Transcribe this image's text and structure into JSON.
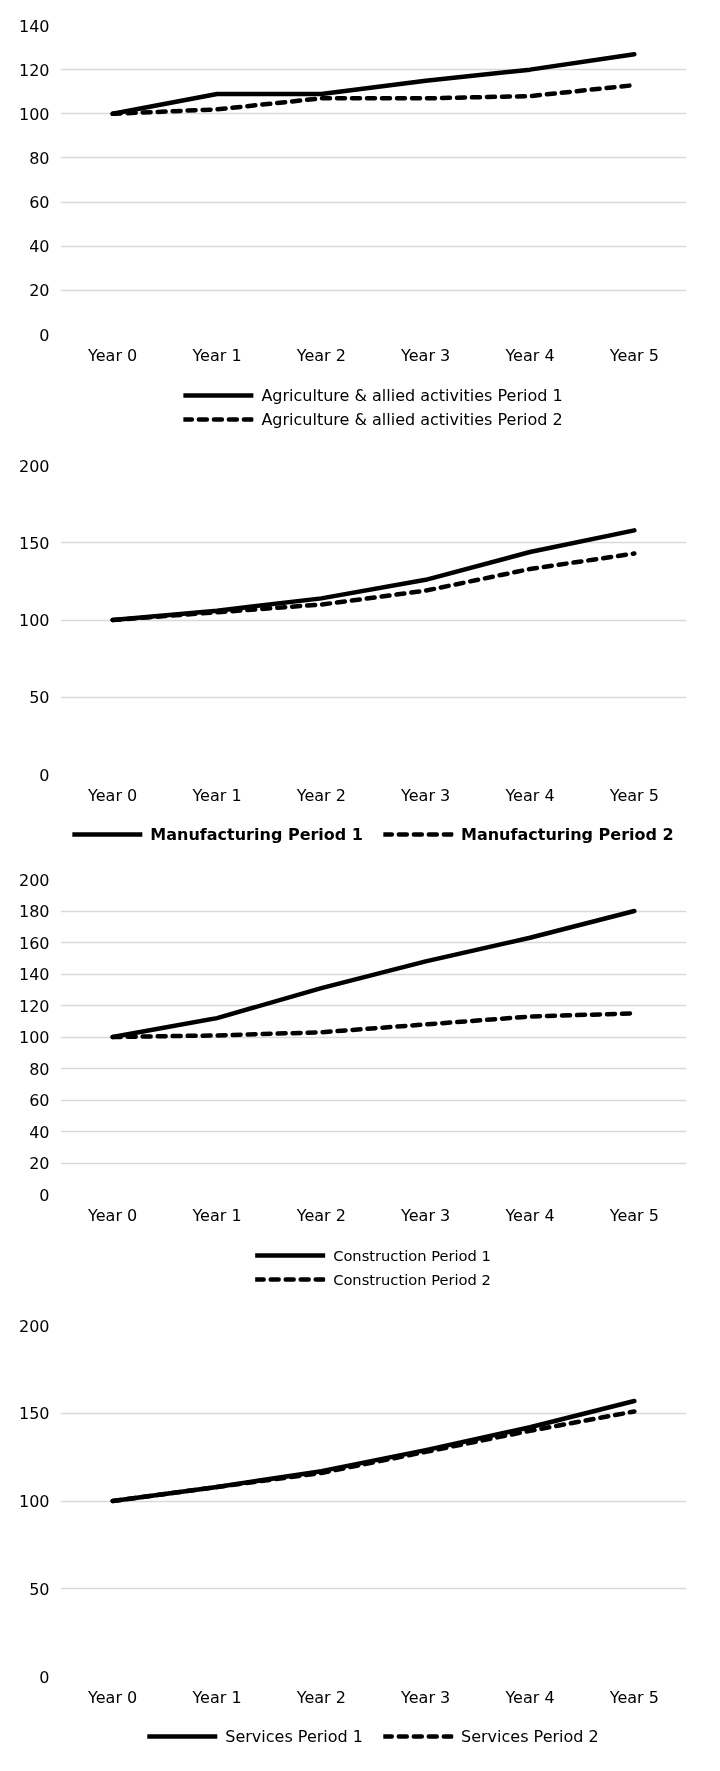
{
  "chart_data": [
    {
      "type": "line",
      "categories": [
        "Year 0",
        "Year 1",
        "Year 2",
        "Year 3",
        "Year 4",
        "Year 5"
      ],
      "ylim": [
        0,
        140
      ],
      "yticks": [
        0,
        20,
        40,
        60,
        80,
        100,
        120,
        140
      ],
      "grid": "y",
      "legend": "bottom",
      "series": [
        {
          "name": "Agriculture & allied activities Period 1",
          "color": "#000000",
          "line_style": "solid",
          "values": [
            100,
            109,
            109,
            115,
            120,
            127
          ]
        },
        {
          "name": "Agriculture & allied activities Period 2",
          "color": "#000000",
          "line_style": "dashed",
          "values": [
            100,
            102,
            107,
            107,
            108,
            113
          ]
        }
      ]
    },
    {
      "type": "line",
      "categories": [
        "Year 0",
        "Year 1",
        "Year 2",
        "Year 3",
        "Year 4",
        "Year 5"
      ],
      "ylim": [
        0,
        200
      ],
      "yticks": [
        0,
        50,
        100,
        150,
        200
      ],
      "grid": "y",
      "legend": "bottom",
      "series": [
        {
          "name": "Manufacturing Period 1",
          "color": "#000000",
          "line_style": "solid",
          "values": [
            100,
            106,
            114,
            126,
            144,
            158
          ]
        },
        {
          "name": "Manufacturing Period 2",
          "color": "#000000",
          "line_style": "dashed",
          "values": [
            100,
            105,
            110,
            119,
            133,
            143
          ]
        }
      ]
    },
    {
      "type": "line",
      "categories": [
        "Year 0",
        "Year 1",
        "Year 2",
        "Year 3",
        "Year 4",
        "Year 5"
      ],
      "ylim": [
        0,
        200
      ],
      "yticks": [
        0,
        20,
        40,
        60,
        80,
        100,
        120,
        140,
        160,
        180,
        200
      ],
      "grid": "y",
      "legend": "bottom",
      "series": [
        {
          "name": "Construction Period 1",
          "color": "#000000",
          "line_style": "solid",
          "values": [
            100,
            112,
            131,
            148,
            163,
            180
          ]
        },
        {
          "name": "Construction Period 2",
          "color": "#000000",
          "line_style": "dashed",
          "values": [
            100,
            101,
            103,
            108,
            113,
            115
          ]
        }
      ]
    },
    {
      "type": "line",
      "categories": [
        "Year 0",
        "Year 1",
        "Year 2",
        "Year 3",
        "Year 4",
        "Year 5"
      ],
      "ylim": [
        0,
        200
      ],
      "yticks": [
        0,
        50,
        100,
        150,
        200
      ],
      "grid": "y",
      "legend": "bottom",
      "series": [
        {
          "name": "Services Period 1",
          "color": "#000000",
          "line_style": "solid",
          "values": [
            100,
            108,
            117,
            129,
            142,
            157
          ]
        },
        {
          "name": "Services Period 2",
          "color": "#000000",
          "line_style": "dashed",
          "values": [
            100,
            108,
            116,
            128,
            140,
            151
          ]
        }
      ]
    }
  ]
}
